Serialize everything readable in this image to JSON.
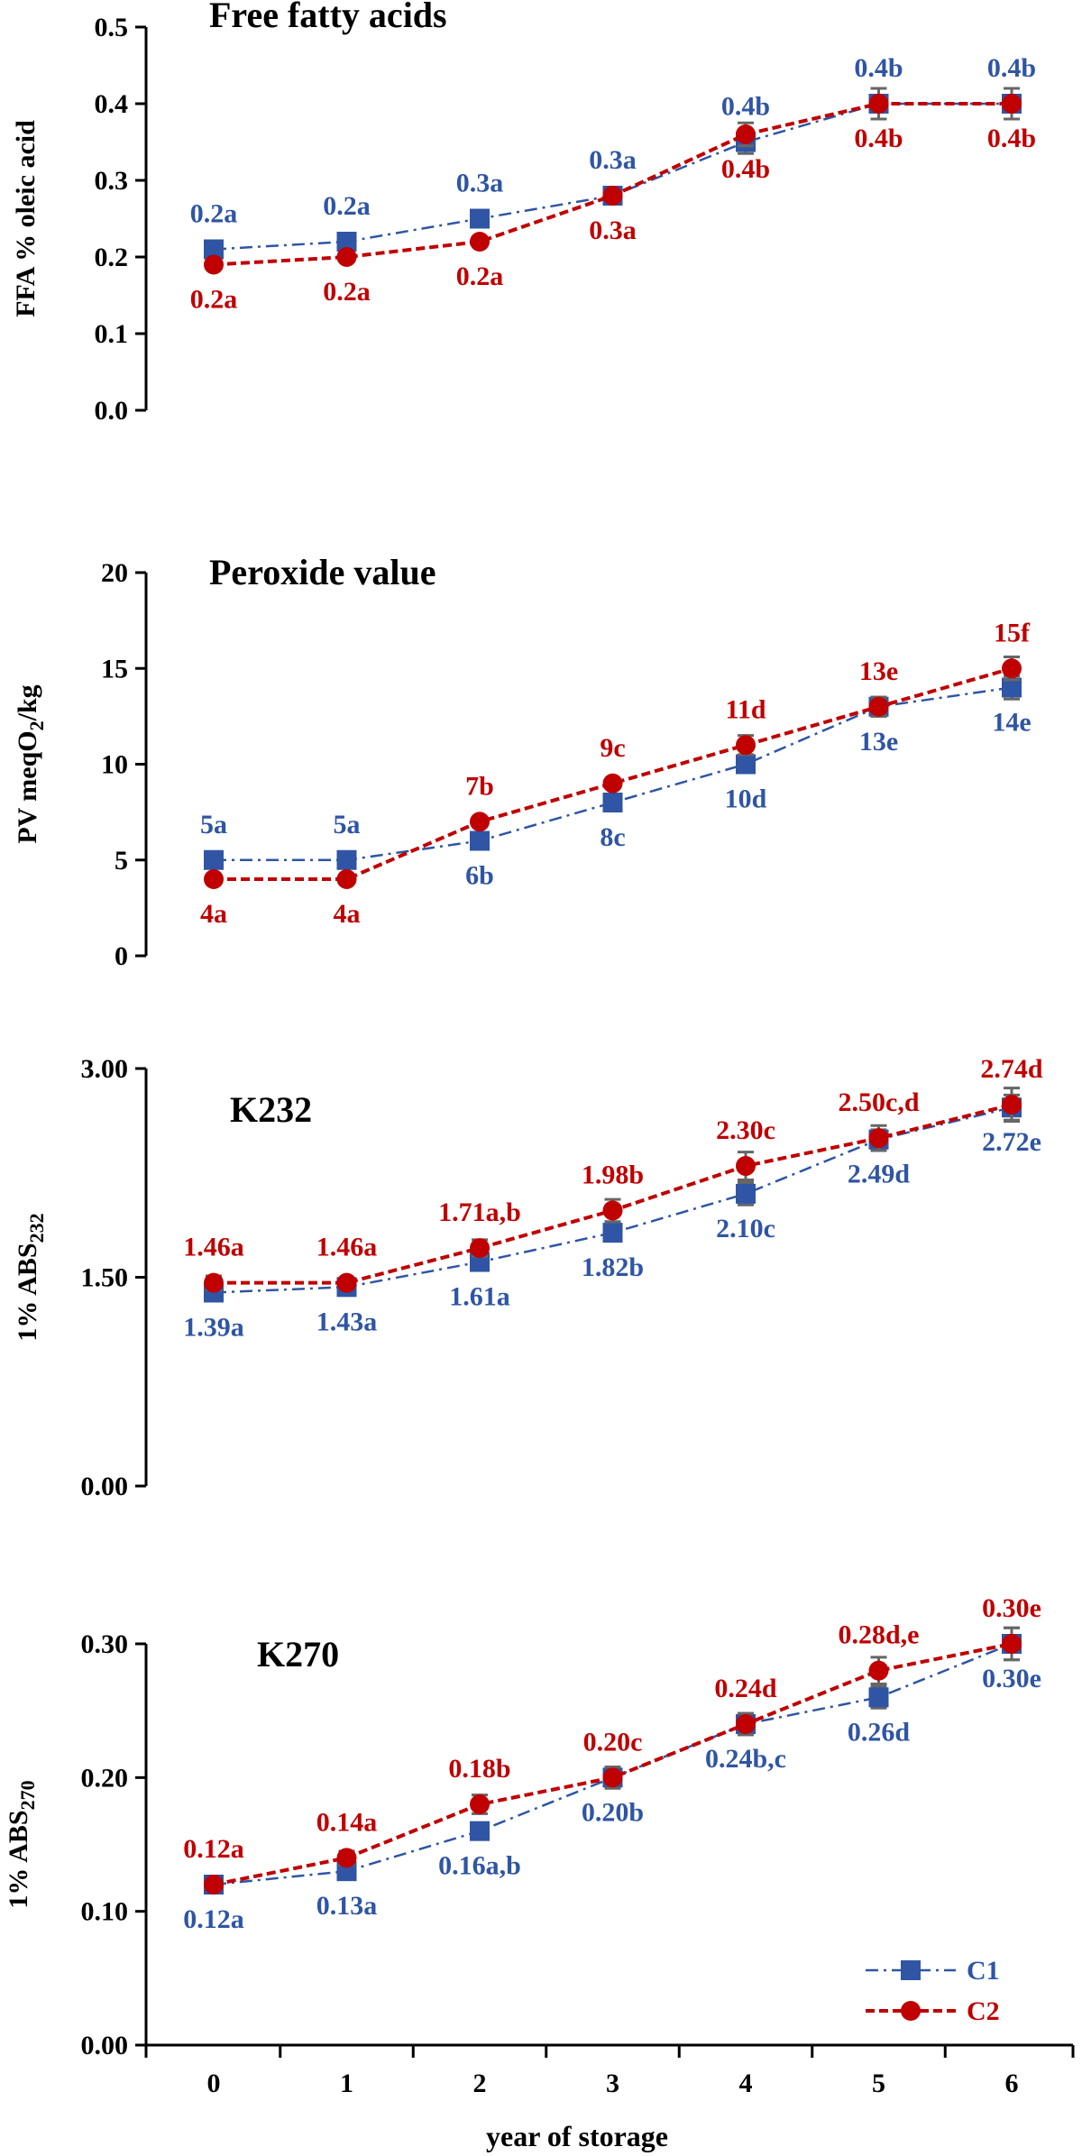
{
  "figure": {
    "xlabel": "year of storage",
    "categories": [
      "0",
      "1",
      "2",
      "3",
      "4",
      "5",
      "6"
    ],
    "legend": [
      {
        "name": "C1",
        "color": "#2F55A4",
        "marker": "square",
        "dash": "dash-dot"
      },
      {
        "name": "C2",
        "color": "#C00000",
        "marker": "circle",
        "dash": "dashed"
      }
    ]
  },
  "chart_data": [
    {
      "type": "line",
      "title": "Free fatty acids",
      "ylabel": "FFA % oleic acid",
      "ylim": [
        0,
        0.5
      ],
      "yticks": [
        "0.0",
        "0.1",
        "0.2",
        "0.3",
        "0.4",
        "0.5"
      ],
      "x": [
        0,
        1,
        2,
        3,
        4,
        5,
        6
      ],
      "series": [
        {
          "name": "C1",
          "color": "#2F55A4",
          "values": [
            0.21,
            0.22,
            0.25,
            0.28,
            0.35,
            0.4,
            0.4
          ],
          "errors": [
            0,
            0,
            0,
            0,
            0.015,
            0,
            0
          ],
          "labels": [
            "0.2a",
            "0.2a",
            "0.3a",
            "0.3a",
            "0.4b",
            "0.4b",
            "0.4b"
          ]
        },
        {
          "name": "C2",
          "color": "#C00000",
          "values": [
            0.19,
            0.2,
            0.22,
            0.28,
            0.36,
            0.4,
            0.4
          ],
          "errors": [
            0,
            0,
            0,
            0,
            0.015,
            0.02,
            0.02
          ],
          "labels": [
            "0.2a",
            "0.2a",
            "0.2a",
            "0.3a",
            "0.4b",
            "0.4b",
            "0.4b"
          ]
        }
      ]
    },
    {
      "type": "line",
      "title": "Peroxide value",
      "ylabel": "PV meqO2/kg",
      "ylabel_main": "PV meqO",
      "ylabel_sub": "2",
      "ylabel_tail": "/kg",
      "ylim": [
        0,
        20
      ],
      "yticks": [
        "0",
        "5",
        "10",
        "15",
        "20"
      ],
      "x": [
        0,
        1,
        2,
        3,
        4,
        5,
        6
      ],
      "series": [
        {
          "name": "C1",
          "color": "#2F55A4",
          "values": [
            5,
            5,
            6,
            8,
            10,
            13,
            14
          ],
          "errors": [
            0,
            0,
            0,
            0,
            0.4,
            0.5,
            0.6
          ],
          "labels": [
            "5a",
            "5a",
            "6b",
            "8c",
            "10d",
            "13e",
            "14e"
          ]
        },
        {
          "name": "C2",
          "color": "#C00000",
          "values": [
            4,
            4,
            7,
            9,
            11,
            13,
            15
          ],
          "errors": [
            0,
            0,
            0,
            0,
            0.5,
            0.5,
            0.6
          ],
          "labels": [
            "4a",
            "4a",
            "7b",
            "9c",
            "11d",
            "13e",
            "15f"
          ]
        }
      ]
    },
    {
      "type": "line",
      "title": "K232",
      "ylabel": "1% ABS232",
      "ylabel_main": "1% ABS",
      "ylabel_sub": "232",
      "ylabel_tail": "",
      "ylim": [
        0,
        3
      ],
      "yticks": [
        "0.00",
        "1.50",
        "3.00"
      ],
      "x": [
        0,
        1,
        2,
        3,
        4,
        5,
        6
      ],
      "series": [
        {
          "name": "C1",
          "color": "#2F55A4",
          "values": [
            1.39,
            1.43,
            1.61,
            1.82,
            2.1,
            2.49,
            2.72
          ],
          "errors": [
            0.05,
            0.03,
            0.05,
            0.06,
            0.08,
            0.07,
            0.09
          ],
          "labels": [
            "1.39a",
            "1.43a",
            "1.61a",
            "1.82b",
            "2.10c",
            "2.49d",
            "2.72e"
          ]
        },
        {
          "name": "C2",
          "color": "#C00000",
          "values": [
            1.46,
            1.46,
            1.71,
            1.98,
            2.3,
            2.5,
            2.74
          ],
          "errors": [
            0.05,
            0.03,
            0.06,
            0.08,
            0.1,
            0.09,
            0.12
          ],
          "labels": [
            "1.46a",
            "1.46a",
            "1.71a,b",
            "1.98b",
            "2.30c",
            "2.50c,d",
            "2.74d"
          ]
        }
      ]
    },
    {
      "type": "line",
      "title": "K270",
      "ylabel": "1% ABS270",
      "ylabel_main": "1% ABS",
      "ylabel_sub": "270",
      "ylabel_tail": "",
      "ylim": [
        0,
        0.3
      ],
      "yticks": [
        "0.00",
        "0.10",
        "0.20",
        "0.30"
      ],
      "x": [
        0,
        1,
        2,
        3,
        4,
        5,
        6
      ],
      "series": [
        {
          "name": "C1",
          "color": "#2F55A4",
          "values": [
            0.12,
            0.13,
            0.16,
            0.2,
            0.24,
            0.26,
            0.3
          ],
          "errors": [
            0,
            0,
            0.005,
            0.007,
            0.008,
            0.008,
            0.012
          ],
          "labels": [
            "0.12a",
            "0.13a",
            "0.16a,b",
            "0.20b",
            "0.24b,c",
            "0.26d",
            "0.30e"
          ]
        },
        {
          "name": "C2",
          "color": "#C00000",
          "values": [
            0.12,
            0.14,
            0.18,
            0.2,
            0.24,
            0.28,
            0.3
          ],
          "errors": [
            0,
            0.005,
            0.007,
            0.008,
            0.008,
            0.01,
            0.012
          ],
          "labels": [
            "0.12a",
            "0.14a",
            "0.18b",
            "0.20c",
            "0.24d",
            "0.28d,e",
            "0.30e"
          ]
        }
      ]
    }
  ]
}
